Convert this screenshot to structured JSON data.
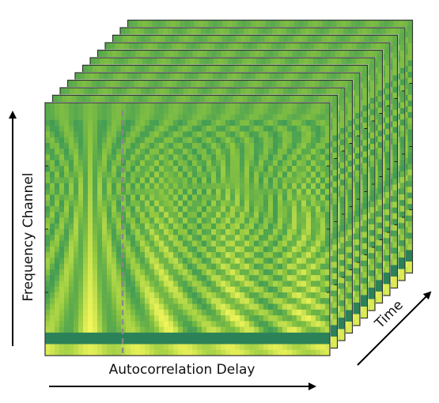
{
  "labels": {
    "y_axis": "Frequency Channel",
    "x_axis": "Autocorrelation Delay",
    "time_axis": "Time"
  },
  "diagram": {
    "frame_count": 12,
    "colormap": [
      "#1e6e5a",
      "#3d9a55",
      "#8ec63f",
      "#f2f65a"
    ],
    "marker_color": "#888888",
    "frame_border_color": "#333333"
  }
}
